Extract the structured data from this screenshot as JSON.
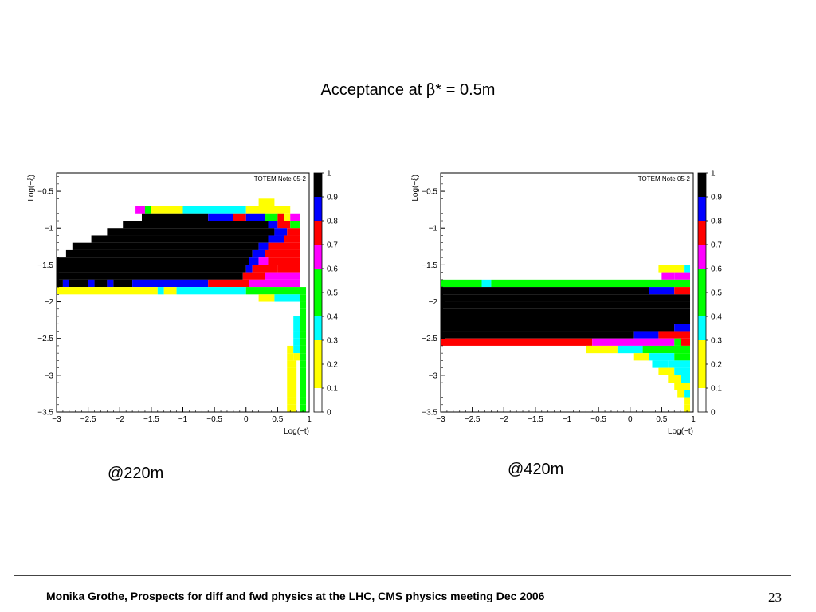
{
  "slide": {
    "title_prefix": "Acceptance at ",
    "title_symbol": "β",
    "title_suffix": "* = 0.5m",
    "footer": "Monika Grothe, Prospects for diff and fwd physics at the LHC, CMS physics meeting Dec 2006",
    "page_number": "23"
  },
  "chart_data": [
    {
      "type": "heatmap",
      "caption": "@220m",
      "note": "TOTEM Note 05-2",
      "xlabel": "Log(−t)",
      "ylabel": "Log(−ξ)",
      "xlim": [
        -3,
        1
      ],
      "ylim": [
        -3.5,
        -0.25
      ],
      "x_ticks": [
        -3,
        -2.5,
        -2,
        -1.5,
        -1,
        -0.5,
        0,
        0.5,
        1
      ],
      "y_ticks": [
        -3.5,
        -3,
        -2.5,
        -2,
        -1.5,
        -1,
        -0.5
      ],
      "zlim": [
        0,
        1
      ],
      "z_ticks": [
        0,
        0.1,
        0.2,
        0.3,
        0.4,
        0.5,
        0.6,
        0.7,
        0.8,
        0.9,
        1
      ],
      "palette": [
        "#ffffff",
        "#ffff00",
        "#00ffff",
        "#00ff00",
        "#ff00ff",
        "#ff0000",
        "#0000ff",
        "#000000"
      ],
      "cells": [
        {
          "y": -0.65,
          "x": [
            0.2,
            0.45
          ],
          "c": 1
        },
        {
          "y": -0.75,
          "x": [
            -1.75,
            -1.6
          ],
          "c": 4
        },
        {
          "y": -0.75,
          "x": [
            -1.6,
            -1.5
          ],
          "c": 3
        },
        {
          "y": -0.75,
          "x": [
            -1.5,
            -1.0
          ],
          "c": 1
        },
        {
          "y": -0.75,
          "x": [
            -1.0,
            0.0
          ],
          "c": 2
        },
        {
          "y": -0.75,
          "x": [
            0.0,
            0.7
          ],
          "c": 1
        },
        {
          "y": -0.85,
          "x": [
            -1.65,
            -0.6
          ],
          "c": 7
        },
        {
          "y": -0.85,
          "x": [
            -0.6,
            -0.2
          ],
          "c": 6
        },
        {
          "y": -0.85,
          "x": [
            -0.2,
            0.0
          ],
          "c": 5
        },
        {
          "y": -0.85,
          "x": [
            0.0,
            0.3
          ],
          "c": 6
        },
        {
          "y": -0.85,
          "x": [
            0.3,
            0.5
          ],
          "c": 3
        },
        {
          "y": -0.85,
          "x": [
            0.5,
            0.6
          ],
          "c": 5
        },
        {
          "y": -0.85,
          "x": [
            0.6,
            0.7
          ],
          "c": 1
        },
        {
          "y": -0.85,
          "x": [
            0.7,
            0.85
          ],
          "c": 4
        },
        {
          "y": -0.95,
          "x": [
            -1.95,
            0.35
          ],
          "c": 7
        },
        {
          "y": -0.95,
          "x": [
            0.35,
            0.5
          ],
          "c": 6
        },
        {
          "y": -0.95,
          "x": [
            0.5,
            0.7
          ],
          "c": 5
        },
        {
          "y": -0.95,
          "x": [
            0.7,
            0.85
          ],
          "c": 3
        },
        {
          "y": -1.05,
          "x": [
            -2.2,
            0.45
          ],
          "c": 7
        },
        {
          "y": -1.05,
          "x": [
            0.45,
            0.65
          ],
          "c": 6
        },
        {
          "y": -1.05,
          "x": [
            0.65,
            0.85
          ],
          "c": 5
        },
        {
          "y": -1.15,
          "x": [
            -2.45,
            0.35
          ],
          "c": 7
        },
        {
          "y": -1.15,
          "x": [
            0.35,
            0.6
          ],
          "c": 6
        },
        {
          "y": -1.15,
          "x": [
            0.6,
            0.85
          ],
          "c": 5
        },
        {
          "y": -1.25,
          "x": [
            -2.75,
            0.2
          ],
          "c": 7
        },
        {
          "y": -1.25,
          "x": [
            0.2,
            0.35
          ],
          "c": 6
        },
        {
          "y": -1.25,
          "x": [
            0.35,
            0.85
          ],
          "c": 5
        },
        {
          "y": -1.35,
          "x": [
            -2.85,
            0.1
          ],
          "c": 7
        },
        {
          "y": -1.35,
          "x": [
            0.1,
            0.3
          ],
          "c": 6
        },
        {
          "y": -1.35,
          "x": [
            0.3,
            0.85
          ],
          "c": 5
        },
        {
          "y": -1.45,
          "x": [
            -3.0,
            0.05
          ],
          "c": 7
        },
        {
          "y": -1.45,
          "x": [
            0.05,
            0.2
          ],
          "c": 6
        },
        {
          "y": -1.45,
          "x": [
            0.2,
            0.35
          ],
          "c": 4
        },
        {
          "y": -1.45,
          "x": [
            0.35,
            0.85
          ],
          "c": 5
        },
        {
          "y": -1.55,
          "x": [
            -3.0,
            0.0
          ],
          "c": 7
        },
        {
          "y": -1.55,
          "x": [
            0.0,
            0.1
          ],
          "c": 6
        },
        {
          "y": -1.55,
          "x": [
            0.1,
            0.5
          ],
          "c": 5
        },
        {
          "y": -1.55,
          "x": [
            0.5,
            0.85
          ],
          "c": 5
        },
        {
          "y": -1.65,
          "x": [
            -3.0,
            -0.05
          ],
          "c": 7
        },
        {
          "y": -1.65,
          "x": [
            -0.05,
            0.3
          ],
          "c": 5
        },
        {
          "y": -1.65,
          "x": [
            0.3,
            0.85
          ],
          "c": 4
        },
        {
          "y": -1.75,
          "x": [
            -3.0,
            -2.9
          ],
          "c": 7
        },
        {
          "y": -1.75,
          "x": [
            -2.9,
            -2.8
          ],
          "c": 6
        },
        {
          "y": -1.75,
          "x": [
            -2.8,
            -2.5
          ],
          "c": 7
        },
        {
          "y": -1.75,
          "x": [
            -2.5,
            -2.4
          ],
          "c": 6
        },
        {
          "y": -1.75,
          "x": [
            -2.4,
            -2.2
          ],
          "c": 7
        },
        {
          "y": -1.75,
          "x": [
            -2.2,
            -2.1
          ],
          "c": 6
        },
        {
          "y": -1.75,
          "x": [
            -2.1,
            -1.8
          ],
          "c": 7
        },
        {
          "y": -1.75,
          "x": [
            -1.8,
            -0.6
          ],
          "c": 6
        },
        {
          "y": -1.75,
          "x": [
            -0.6,
            0.05
          ],
          "c": 5
        },
        {
          "y": -1.75,
          "x": [
            0.05,
            0.85
          ],
          "c": 4
        },
        {
          "y": -1.85,
          "x": [
            -3.0,
            -1.4
          ],
          "c": 1
        },
        {
          "y": -1.85,
          "x": [
            -1.4,
            -1.3
          ],
          "c": 2
        },
        {
          "y": -1.85,
          "x": [
            -1.3,
            -1.1
          ],
          "c": 1
        },
        {
          "y": -1.85,
          "x": [
            -1.1,
            0.0
          ],
          "c": 2
        },
        {
          "y": -1.85,
          "x": [
            0.0,
            0.95
          ],
          "c": 3
        },
        {
          "y": -1.95,
          "x": [
            0.2,
            0.45
          ],
          "c": 1
        },
        {
          "y": -1.95,
          "x": [
            0.45,
            0.85
          ],
          "c": 2
        },
        {
          "y": -1.95,
          "x": [
            0.85,
            0.95
          ],
          "c": 3
        },
        {
          "y": -2.05,
          "x": [
            0.85,
            0.95
          ],
          "c": 3
        },
        {
          "y": -2.15,
          "x": [
            0.85,
            0.95
          ],
          "c": 3
        },
        {
          "y": -2.25,
          "x": [
            0.75,
            0.85
          ],
          "c": 2
        },
        {
          "y": -2.25,
          "x": [
            0.85,
            0.95
          ],
          "c": 3
        },
        {
          "y": -2.35,
          "x": [
            0.75,
            0.85
          ],
          "c": 2
        },
        {
          "y": -2.35,
          "x": [
            0.85,
            0.95
          ],
          "c": 3
        },
        {
          "y": -2.45,
          "x": [
            0.75,
            0.85
          ],
          "c": 2
        },
        {
          "y": -2.45,
          "x": [
            0.85,
            0.95
          ],
          "c": 3
        },
        {
          "y": -2.55,
          "x": [
            0.75,
            0.85
          ],
          "c": 2
        },
        {
          "y": -2.55,
          "x": [
            0.85,
            0.95
          ],
          "c": 3
        },
        {
          "y": -2.65,
          "x": [
            0.65,
            0.75
          ],
          "c": 1
        },
        {
          "y": -2.65,
          "x": [
            0.75,
            0.85
          ],
          "c": 2
        },
        {
          "y": -2.65,
          "x": [
            0.85,
            0.95
          ],
          "c": 3
        },
        {
          "y": -2.75,
          "x": [
            0.65,
            0.75
          ],
          "c": 1
        },
        {
          "y": -2.75,
          "x": [
            0.75,
            0.85
          ],
          "c": 1
        },
        {
          "y": -2.75,
          "x": [
            0.85,
            0.95
          ],
          "c": 3
        },
        {
          "y": -2.85,
          "x": [
            0.65,
            0.8
          ],
          "c": 1
        },
        {
          "y": -2.85,
          "x": [
            0.85,
            0.95
          ],
          "c": 3
        },
        {
          "y": -2.95,
          "x": [
            0.65,
            0.8
          ],
          "c": 1
        },
        {
          "y": -2.95,
          "x": [
            0.85,
            0.95
          ],
          "c": 3
        },
        {
          "y": -3.05,
          "x": [
            0.65,
            0.8
          ],
          "c": 1
        },
        {
          "y": -3.05,
          "x": [
            0.85,
            0.95
          ],
          "c": 3
        },
        {
          "y": -3.15,
          "x": [
            0.65,
            0.8
          ],
          "c": 1
        },
        {
          "y": -3.15,
          "x": [
            0.85,
            0.95
          ],
          "c": 3
        },
        {
          "y": -3.25,
          "x": [
            0.65,
            0.8
          ],
          "c": 1
        },
        {
          "y": -3.25,
          "x": [
            0.85,
            0.95
          ],
          "c": 3
        },
        {
          "y": -3.35,
          "x": [
            0.65,
            0.8
          ],
          "c": 1
        },
        {
          "y": -3.35,
          "x": [
            0.85,
            0.95
          ],
          "c": 3
        },
        {
          "y": -3.45,
          "x": [
            0.65,
            0.8
          ],
          "c": 1
        },
        {
          "y": -3.45,
          "x": [
            0.85,
            0.95
          ],
          "c": 3
        }
      ]
    },
    {
      "type": "heatmap",
      "caption": "@420m",
      "note": "TOTEM Note 05-2",
      "xlabel": "Log(−t)",
      "ylabel": "Log(−ξ)",
      "xlim": [
        -3,
        1
      ],
      "ylim": [
        -3.5,
        -0.25
      ],
      "x_ticks": [
        -3,
        -2.5,
        -2,
        -1.5,
        -1,
        -0.5,
        0,
        0.5,
        1
      ],
      "y_ticks": [
        -3.5,
        -3,
        -2.5,
        -2,
        -1.5,
        -1,
        -0.5
      ],
      "zlim": [
        0,
        1
      ],
      "z_ticks": [
        0,
        0.1,
        0.2,
        0.3,
        0.4,
        0.5,
        0.6,
        0.7,
        0.8,
        0.9,
        1
      ],
      "palette": [
        "#ffffff",
        "#ffff00",
        "#00ffff",
        "#00ff00",
        "#ff00ff",
        "#ff0000",
        "#0000ff",
        "#000000"
      ],
      "cells": [
        {
          "y": -1.55,
          "x": [
            0.45,
            0.85
          ],
          "c": 1
        },
        {
          "y": -1.55,
          "x": [
            0.85,
            0.95
          ],
          "c": 2
        },
        {
          "y": -1.65,
          "x": [
            0.5,
            0.7
          ],
          "c": 4
        },
        {
          "y": -1.65,
          "x": [
            0.7,
            0.95
          ],
          "c": 4
        },
        {
          "y": -1.75,
          "x": [
            -3.0,
            -2.35
          ],
          "c": 3
        },
        {
          "y": -1.75,
          "x": [
            -2.35,
            -2.2
          ],
          "c": 2
        },
        {
          "y": -1.75,
          "x": [
            -2.2,
            0.95
          ],
          "c": 3
        },
        {
          "y": -1.85,
          "x": [
            -3.0,
            0.3
          ],
          "c": 7
        },
        {
          "y": -1.85,
          "x": [
            0.3,
            0.7
          ],
          "c": 6
        },
        {
          "y": -1.85,
          "x": [
            0.7,
            0.95
          ],
          "c": 5
        },
        {
          "y": -1.95,
          "x": [
            -3.0,
            0.95
          ],
          "c": 7
        },
        {
          "y": -2.05,
          "x": [
            -3.0,
            0.95
          ],
          "c": 7
        },
        {
          "y": -2.15,
          "x": [
            -3.0,
            0.95
          ],
          "c": 7
        },
        {
          "y": -2.25,
          "x": [
            -3.0,
            0.95
          ],
          "c": 7
        },
        {
          "y": -2.35,
          "x": [
            -3.0,
            0.7
          ],
          "c": 7
        },
        {
          "y": -2.35,
          "x": [
            0.7,
            0.95
          ],
          "c": 6
        },
        {
          "y": -2.45,
          "x": [
            -3.0,
            0.05
          ],
          "c": 7
        },
        {
          "y": -2.45,
          "x": [
            0.05,
            0.45
          ],
          "c": 6
        },
        {
          "y": -2.45,
          "x": [
            0.45,
            0.95
          ],
          "c": 5
        },
        {
          "y": -2.55,
          "x": [
            -3.0,
            -0.6
          ],
          "c": 5
        },
        {
          "y": -2.55,
          "x": [
            -0.6,
            0.7
          ],
          "c": 4
        },
        {
          "y": -2.55,
          "x": [
            0.7,
            0.8
          ],
          "c": 3
        },
        {
          "y": -2.55,
          "x": [
            0.8,
            0.95
          ],
          "c": 5
        },
        {
          "y": -2.65,
          "x": [
            -0.7,
            -0.2
          ],
          "c": 1
        },
        {
          "y": -2.65,
          "x": [
            -0.2,
            0.2
          ],
          "c": 2
        },
        {
          "y": -2.65,
          "x": [
            0.2,
            0.95
          ],
          "c": 3
        },
        {
          "y": -2.75,
          "x": [
            0.05,
            0.3
          ],
          "c": 1
        },
        {
          "y": -2.75,
          "x": [
            0.3,
            0.7
          ],
          "c": 2
        },
        {
          "y": -2.75,
          "x": [
            0.7,
            0.95
          ],
          "c": 3
        },
        {
          "y": -2.85,
          "x": [
            0.35,
            0.6
          ],
          "c": 2
        },
        {
          "y": -2.85,
          "x": [
            0.6,
            0.95
          ],
          "c": 2
        },
        {
          "y": -2.95,
          "x": [
            0.45,
            0.7
          ],
          "c": 1
        },
        {
          "y": -2.95,
          "x": [
            0.7,
            0.95
          ],
          "c": 2
        },
        {
          "y": -3.05,
          "x": [
            0.6,
            0.8
          ],
          "c": 1
        },
        {
          "y": -3.05,
          "x": [
            0.8,
            0.95
          ],
          "c": 2
        },
        {
          "y": -3.15,
          "x": [
            0.7,
            0.95
          ],
          "c": 1
        },
        {
          "y": -3.25,
          "x": [
            0.75,
            0.85
          ],
          "c": 1
        },
        {
          "y": -3.25,
          "x": [
            0.85,
            0.95
          ],
          "c": 2
        },
        {
          "y": -3.35,
          "x": [
            0.85,
            0.95
          ],
          "c": 1
        },
        {
          "y": -3.45,
          "x": [
            0.85,
            0.95
          ],
          "c": 1
        }
      ]
    }
  ]
}
